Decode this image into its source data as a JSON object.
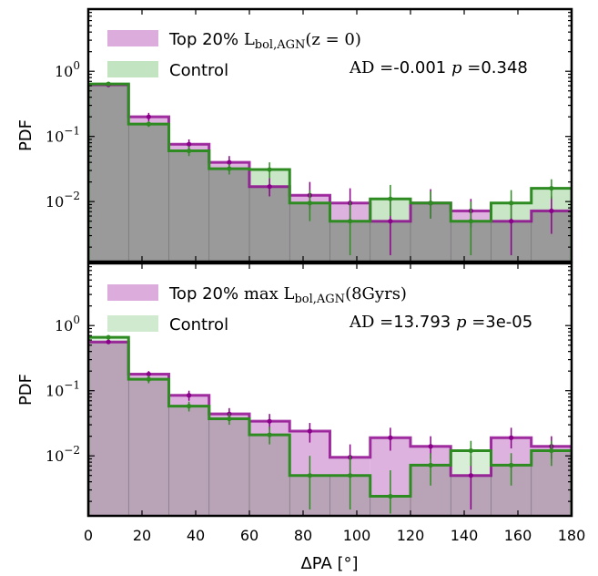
{
  "chart_data": [
    {
      "type": "bar",
      "panel": "top",
      "bin_edges": [
        0,
        15,
        30,
        45,
        60,
        75,
        90,
        105,
        120,
        135,
        150,
        165,
        180
      ],
      "ylabel": "PDF",
      "yscale": "log",
      "ylim": [
        0.0012,
        9
      ],
      "xlim": [
        0,
        180
      ],
      "yticks": [
        {
          "value": 1,
          "label": "10",
          "exp": "0"
        },
        {
          "value": 0.1,
          "label": "10",
          "exp": "−1"
        },
        {
          "value": 0.01,
          "label": "10",
          "exp": "−2"
        }
      ],
      "legend": {
        "position": "upper-left",
        "entries": [
          {
            "prefix": "Top 20% ",
            "math": "L",
            "sub": "bol,AGN",
            "suffix": "(z = 0)"
          },
          {
            "prefix": "Control",
            "math": "",
            "sub": "",
            "suffix": ""
          }
        ]
      },
      "annotation": {
        "ad_label": "AD =",
        "ad_value": "-0.001",
        "p_label": "p =",
        "p_value": "0.348"
      },
      "series": [
        {
          "name": "Top 20% L_bol,AGN(z = 0)",
          "color": "#8b008b",
          "fill": "#d8a4d8",
          "values": [
            0.62,
            0.2,
            0.076,
            0.04,
            0.017,
            0.0125,
            0.0095,
            0.005,
            0.0095,
            0.0072,
            0.005,
            0.0072
          ],
          "errors": [
            [
              0.57,
              0.67
            ],
            [
              0.17,
              0.23
            ],
            [
              0.06,
              0.09
            ],
            [
              0.03,
              0.05
            ],
            [
              0.012,
              0.023
            ],
            [
              0.0078,
              0.02
            ],
            [
              0.005,
              0.016
            ],
            [
              0.0015,
              0.01
            ],
            [
              0.0055,
              0.0155
            ],
            [
              0.004,
              0.011
            ],
            [
              0.0015,
              0.01
            ],
            [
              0.0032,
              0.012
            ]
          ]
        },
        {
          "name": "Control",
          "color": "#2e8b22",
          "fill": "#bfe3bd",
          "values": [
            0.64,
            0.155,
            0.06,
            0.032,
            0.031,
            0.0095,
            0.005,
            0.011,
            0.0095,
            0.005,
            0.0095,
            0.016
          ],
          "errors": [
            [
              0.6,
              0.68
            ],
            [
              0.14,
              0.17
            ],
            [
              0.05,
              0.071
            ],
            [
              0.026,
              0.038
            ],
            [
              0.023,
              0.04
            ],
            [
              0.005,
              0.015
            ],
            [
              0.0015,
              0.01
            ],
            [
              0.006,
              0.018
            ],
            [
              0.0055,
              0.0145
            ],
            [
              0.0015,
              0.01
            ],
            [
              0.0055,
              0.015
            ],
            [
              0.011,
              0.022
            ]
          ]
        }
      ]
    },
    {
      "type": "bar",
      "panel": "bottom",
      "bin_edges": [
        0,
        15,
        30,
        45,
        60,
        75,
        90,
        105,
        120,
        135,
        150,
        165,
        180
      ],
      "ylabel": "PDF",
      "xlabel": "ΔPA [°]",
      "yscale": "log",
      "ylim": [
        0.0012,
        9
      ],
      "xlim": [
        0,
        180
      ],
      "xticks": [
        0,
        20,
        40,
        60,
        80,
        100,
        120,
        140,
        160,
        180
      ],
      "yticks": [
        {
          "value": 1,
          "label": "10",
          "exp": "0"
        },
        {
          "value": 0.1,
          "label": "10",
          "exp": "−1"
        },
        {
          "value": 0.01,
          "label": "10",
          "exp": "−2"
        }
      ],
      "legend": {
        "position": "upper-left",
        "entries": [
          {
            "prefix": "Top 20% ",
            "math": "max L",
            "sub": "bol,AGN",
            "suffix": "(8Gyrs)"
          },
          {
            "prefix": "Control",
            "math": "",
            "sub": "",
            "suffix": ""
          }
        ]
      },
      "annotation": {
        "ad_label": "AD =",
        "ad_value": "13.793",
        "p_label": "p =",
        "p_value": "3e-05"
      },
      "series": [
        {
          "name": "Top 20% max L_bol,AGN(8Gyrs)",
          "color": "#8b008b",
          "fill": "#d8a4d8",
          "values": [
            0.56,
            0.18,
            0.085,
            0.044,
            0.034,
            0.024,
            0.0095,
            0.019,
            0.014,
            0.005,
            0.019,
            0.014
          ],
          "errors": [
            [
              0.52,
              0.61
            ],
            [
              0.16,
              0.2
            ],
            [
              0.07,
              0.1
            ],
            [
              0.035,
              0.054
            ],
            [
              0.025,
              0.044
            ],
            [
              0.016,
              0.032
            ],
            [
              0.005,
              0.015
            ],
            [
              0.012,
              0.027
            ],
            [
              0.009,
              0.02
            ],
            [
              0.0015,
              0.01
            ],
            [
              0.013,
              0.027
            ],
            [
              0.009,
              0.02
            ]
          ]
        },
        {
          "name": "Control",
          "color": "#2e8b22",
          "fill": "#bfe3bd",
          "values": [
            0.66,
            0.15,
            0.058,
            0.037,
            0.021,
            0.005,
            0.005,
            0.0024,
            0.0072,
            0.012,
            0.0072,
            0.012
          ],
          "errors": [
            [
              0.62,
              0.7
            ],
            [
              0.13,
              0.17
            ],
            [
              0.048,
              0.068
            ],
            [
              0.03,
              0.045
            ],
            [
              0.015,
              0.028
            ],
            [
              0.0015,
              0.01
            ],
            [
              0.0015,
              0.01
            ],
            [
              0.0013,
              0.006
            ],
            [
              0.0035,
              0.011
            ],
            [
              0.007,
              0.017
            ],
            [
              0.0035,
              0.011
            ],
            [
              0.007,
              0.017
            ]
          ]
        }
      ]
    }
  ]
}
